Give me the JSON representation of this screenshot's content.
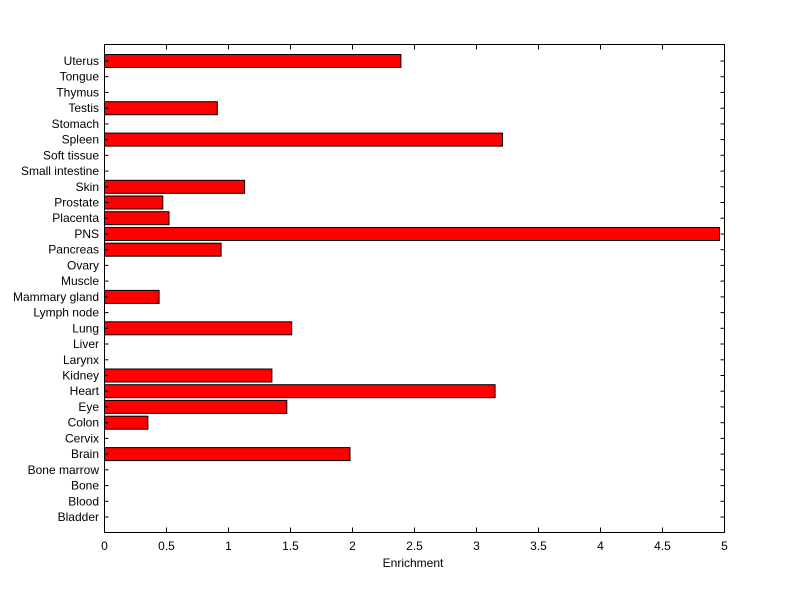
{
  "chart_data": {
    "type": "bar",
    "orientation": "horizontal",
    "title": "",
    "xlabel": "Enrichment",
    "ylabel": "",
    "xlim": [
      0,
      5
    ],
    "x_ticks": [
      "0",
      "0.5",
      "1",
      "1.5",
      "2",
      "2.5",
      "3",
      "3.5",
      "4",
      "4.5",
      "5"
    ],
    "grid": false,
    "legend": "none",
    "bar_color": "#ff0000",
    "categories": [
      "Uterus",
      "Tongue",
      "Thymus",
      "Testis",
      "Stomach",
      "Spleen",
      "Soft tissue",
      "Small intestine",
      "Skin",
      "Prostate",
      "Placenta",
      "PNS",
      "Pancreas",
      "Ovary",
      "Muscle",
      "Mammary gland",
      "Lymph node",
      "Lung",
      "Liver",
      "Larynx",
      "Kidney",
      "Heart",
      "Eye",
      "Colon",
      "Cervix",
      "Brain",
      "Bone marrow",
      "Bone",
      "Blood",
      "Bladder"
    ],
    "values": [
      2.39,
      0,
      0,
      0.91,
      0,
      3.21,
      0,
      0,
      1.13,
      0.47,
      0.52,
      4.96,
      0.94,
      0,
      0,
      0.44,
      0,
      1.51,
      0,
      0,
      1.35,
      3.15,
      1.47,
      0.35,
      0,
      1.98,
      0,
      0,
      0,
      0
    ]
  }
}
